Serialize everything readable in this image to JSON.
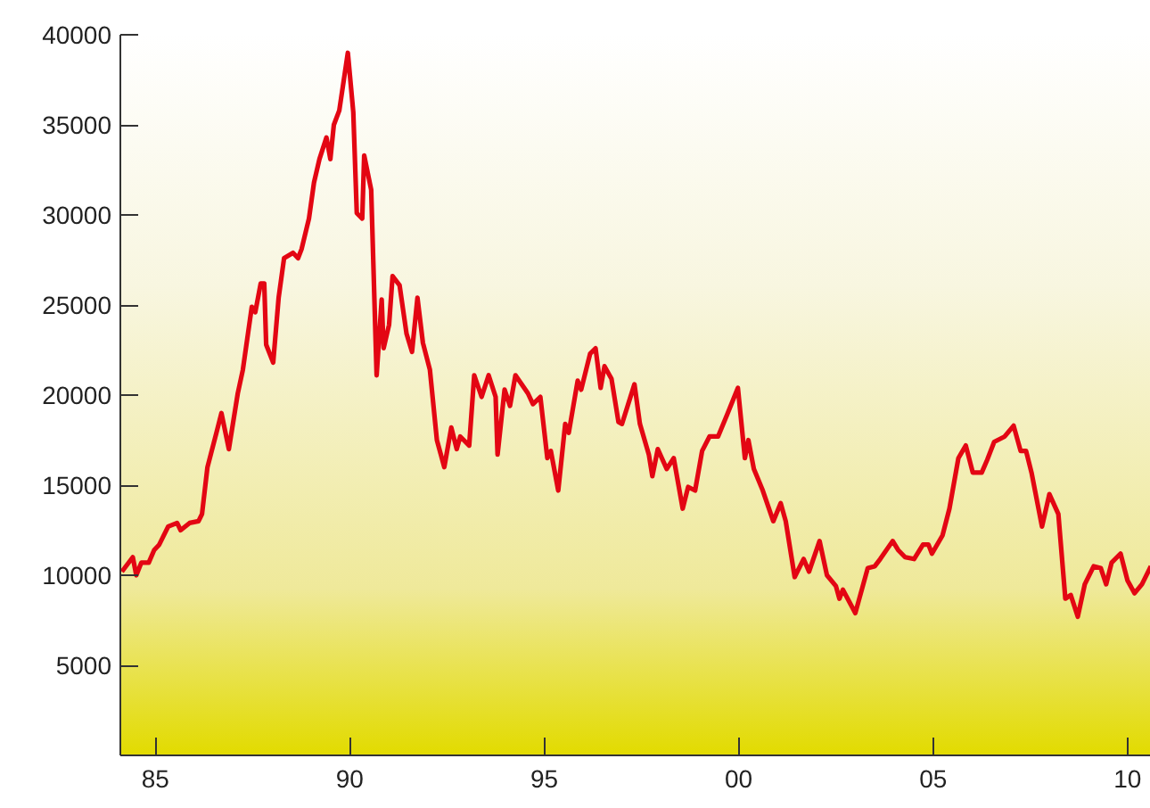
{
  "chart_data": {
    "type": "line",
    "color": "#e30613",
    "line_style": "solid",
    "xlim": [
      1984.1,
      2010.6
    ],
    "ylim": [
      0,
      40000
    ],
    "xticks": [
      {
        "value": 1985,
        "label": "85"
      },
      {
        "value": 1990,
        "label": "90"
      },
      {
        "value": 1995,
        "label": "95"
      },
      {
        "value": 2000,
        "label": "00"
      },
      {
        "value": 2005,
        "label": "05"
      },
      {
        "value": 2010,
        "label": "10"
      }
    ],
    "yticks": [
      {
        "value": 0,
        "label": null
      },
      5000,
      10000,
      15000,
      20000,
      25000,
      30000,
      35000,
      40000
    ],
    "x": [
      1984.14,
      1984.42,
      1984.51,
      1984.64,
      1984.83,
      1984.97,
      1985.1,
      1985.33,
      1985.56,
      1985.65,
      1985.88,
      1986.11,
      1986.2,
      1986.34,
      1986.57,
      1986.7,
      1986.89,
      1987.12,
      1987.25,
      1987.48,
      1987.57,
      1987.71,
      1987.8,
      1987.85,
      1988.03,
      1988.17,
      1988.31,
      1988.54,
      1988.67,
      1988.76,
      1988.95,
      1989.08,
      1989.22,
      1989.4,
      1989.5,
      1989.59,
      1989.73,
      1989.95,
      1990.09,
      1990.18,
      1990.32,
      1990.37,
      1990.55,
      1990.69,
      1990.82,
      1990.87,
      1991.01,
      1991.1,
      1991.28,
      1991.46,
      1991.6,
      1991.74,
      1991.88,
      1992.06,
      1992.24,
      1992.43,
      1992.61,
      1992.75,
      1992.84,
      1993.07,
      1993.2,
      1993.39,
      1993.57,
      1993.75,
      1993.8,
      1993.98,
      1994.12,
      1994.26,
      1994.58,
      1994.71,
      1994.9,
      1995.08,
      1995.17,
      1995.36,
      1995.54,
      1995.63,
      1995.86,
      1995.95,
      1996.18,
      1996.32,
      1996.45,
      1996.55,
      1996.73,
      1996.91,
      1997.0,
      1997.32,
      1997.46,
      1997.69,
      1997.78,
      1997.92,
      1998.15,
      1998.33,
      1998.56,
      1998.7,
      1998.88,
      1999.06,
      1999.25,
      1999.47,
      1999.7,
      1999.98,
      2000.16,
      2000.25,
      2000.39,
      2000.62,
      2000.89,
      2001.08,
      2001.21,
      2001.44,
      2001.67,
      2001.81,
      2002.08,
      2002.27,
      2002.5,
      2002.59,
      2002.68,
      2003.0,
      2003.32,
      2003.5,
      2003.64,
      2003.96,
      2004.1,
      2004.28,
      2004.51,
      2004.74,
      2004.88,
      2004.97,
      2005.24,
      2005.42,
      2005.65,
      2005.84,
      2006.02,
      2006.25,
      2006.39,
      2006.57,
      2006.84,
      2007.07,
      2007.25,
      2007.39,
      2007.53,
      2007.71,
      2007.8,
      2007.99,
      2008.22,
      2008.4,
      2008.54,
      2008.72,
      2008.9,
      2009.13,
      2009.31,
      2009.45,
      2009.59,
      2009.82,
      2010.0,
      2010.18,
      2010.37,
      2010.6
    ],
    "values": [
      10200,
      11000,
      10000,
      10700,
      10700,
      11400,
      11700,
      12700,
      12900,
      12500,
      12900,
      13000,
      13400,
      16000,
      17900,
      19000,
      17000,
      20100,
      21400,
      24900,
      24600,
      26200,
      26200,
      22800,
      21800,
      25400,
      27600,
      27900,
      27600,
      28100,
      29800,
      31800,
      33100,
      34300,
      33100,
      35000,
      35800,
      39000,
      35700,
      30100,
      29800,
      33300,
      31400,
      21100,
      25300,
      22600,
      23900,
      26600,
      26100,
      23400,
      22400,
      25400,
      22900,
      21400,
      17500,
      16000,
      18200,
      17000,
      17700,
      17200,
      21100,
      19900,
      21100,
      19900,
      16700,
      20300,
      19400,
      21100,
      20100,
      19500,
      19900,
      16500,
      16900,
      14700,
      18400,
      17900,
      20800,
      20300,
      22300,
      22600,
      20400,
      21600,
      20900,
      18500,
      18400,
      20600,
      18400,
      16700,
      15500,
      17000,
      15900,
      16500,
      13700,
      14900,
      14700,
      16900,
      17700,
      17700,
      18900,
      20400,
      16500,
      17500,
      15900,
      14700,
      13000,
      14000,
      13000,
      9900,
      10900,
      10200,
      11900,
      10000,
      9400,
      8700,
      9200,
      7900,
      10400,
      10500,
      10900,
      11900,
      11400,
      11000,
      10900,
      11700,
      11700,
      11200,
      12200,
      13700,
      16500,
      17200,
      15700,
      15700,
      16400,
      17400,
      17700,
      18300,
      16900,
      16900,
      15700,
      13700,
      12700,
      14500,
      13400,
      8700,
      8900,
      7700,
      9500,
      10500,
      10400,
      9500,
      10700,
      11200,
      9700,
      9000,
      9500,
      10500
    ]
  }
}
